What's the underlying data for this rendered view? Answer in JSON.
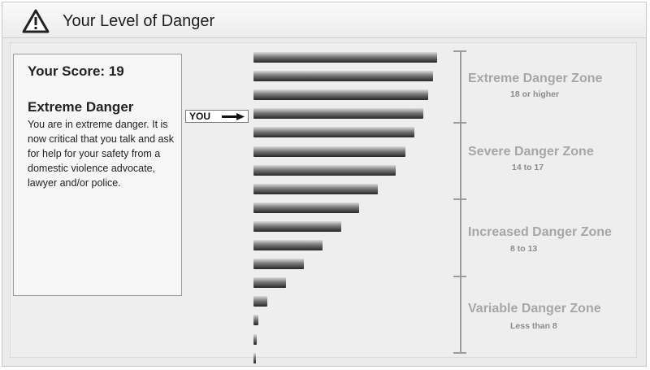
{
  "header": {
    "title": "Your Level of Danger",
    "icon": "warning-icon"
  },
  "result": {
    "score_label": "Your Score: 19",
    "score": 19,
    "level_title": "Extreme Danger",
    "level_desc": "You are in extreme danger. It is now critical that you talk and ask for help for your safety from a domestic violence advocate, lawyer and/or police."
  },
  "marker": {
    "label": "YOU",
    "icon": "arrow-right-icon"
  },
  "bars": {
    "count": 17,
    "highlight_index": 3
  },
  "zones": [
    {
      "title": "Extreme Danger Zone",
      "range": "18 or higher"
    },
    {
      "title": "Severe Danger Zone",
      "range": "14 to 17"
    },
    {
      "title": "Increased Danger Zone",
      "range": "8 to 13"
    },
    {
      "title": "Variable Danger Zone",
      "range": "Less than 8"
    }
  ]
}
